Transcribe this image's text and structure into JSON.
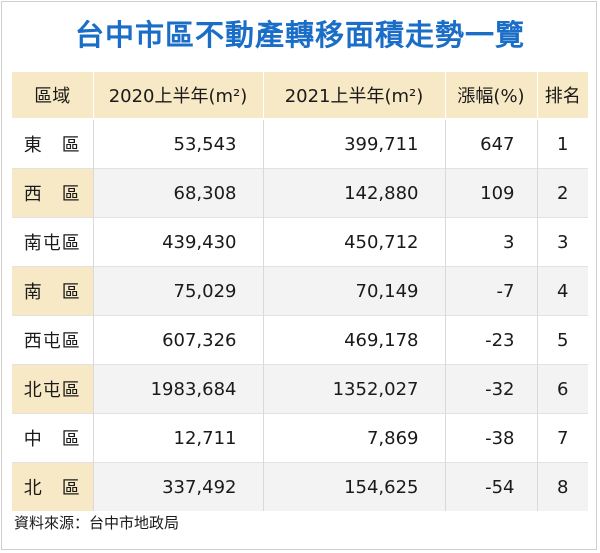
{
  "title": "台中市區不動產轉移面積走勢一覽",
  "source": "資料來源：台中市地政局",
  "chart_data": {
    "type": "table",
    "title": "台中市區不動產轉移面積走勢一覽",
    "columns": [
      "區域",
      "2020上半年(m²)",
      "2021上半年(m²)",
      "漲幅(%)",
      "排名"
    ],
    "rows": [
      [
        "東　區",
        "53,543",
        "399,711",
        "647",
        "1"
      ],
      [
        "西　區",
        "68,308",
        "142,880",
        "109",
        "2"
      ],
      [
        "南屯區",
        "439,430",
        "450,712",
        "3",
        "3"
      ],
      [
        "南　區",
        "75,029",
        "70,149",
        "-7",
        "4"
      ],
      [
        "西屯區",
        "607,326",
        "469,178",
        "-23",
        "5"
      ],
      [
        "北屯區",
        "1983,684",
        "1352,027",
        "-32",
        "6"
      ],
      [
        "中　區",
        "12,711",
        "7,869",
        "-38",
        "7"
      ],
      [
        "北　區",
        "337,492",
        "154,625",
        "-54",
        "8"
      ]
    ]
  }
}
